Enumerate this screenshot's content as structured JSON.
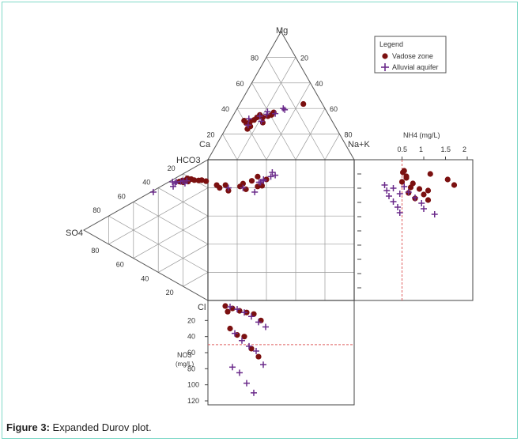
{
  "figure": {
    "caption_label": "Figure 3:",
    "caption_text": "Expanded Durov plot."
  },
  "colors": {
    "vadose": "#7b1010",
    "alluvial": "#6a2a8a",
    "frame": "#7fd8c8",
    "grid": "#999999",
    "reference_line": "#e06060"
  },
  "chart_data": {
    "type": "scatter",
    "plot_kind": "expanded Durov plot",
    "legend": {
      "title": "Legend",
      "placement": "top-right",
      "entries": [
        {
          "name": "Vadose zone",
          "marker": "filled-circle",
          "color": "#7b1010"
        },
        {
          "name": "Alluvial aquifer",
          "marker": "plus",
          "color": "#6a2a8a"
        }
      ]
    },
    "cation_triangle": {
      "apex_labels": {
        "top": "Mg",
        "left": "Ca",
        "right": "Na+K"
      },
      "left_edge_ticks": [
        "20",
        "40",
        "60",
        "80"
      ],
      "right_edge_ticks": [
        "20",
        "40",
        "60",
        "80"
      ]
    },
    "anion_triangle": {
      "apex_labels": {
        "top": "HCO3",
        "left": "SO4",
        "bottom": "Cl"
      },
      "top_edge_ticks": [
        "20",
        "40",
        "60",
        "80"
      ],
      "bottom_edge_ticks": [
        "20",
        "40",
        "60",
        "80"
      ]
    },
    "nh4_panel": {
      "label": "NH4 (mg/L)",
      "ticks": [
        "0.5",
        "1",
        "1.5",
        "2"
      ],
      "xlim": [
        0,
        2
      ],
      "reference_line": 0.5
    },
    "no3_panel": {
      "label_line1": "NO3",
      "label_line2": "(mg/L)",
      "ticks": [
        "20",
        "40",
        "60",
        "80",
        "100",
        "120"
      ],
      "ylim": [
        0,
        120
      ],
      "reference_line": 50
    },
    "series": [
      {
        "name": "Vadose zone",
        "cation_points": [
          [
            30.5,
            9.5
          ],
          [
            28.5,
            12
          ],
          [
            29.5,
            14
          ],
          [
            31,
            16
          ],
          [
            33,
            17
          ],
          [
            35,
            18
          ],
          [
            33,
            21
          ],
          [
            34,
            24
          ],
          [
            35,
            26
          ],
          [
            37,
            26.5
          ],
          [
            29,
            23
          ],
          [
            26,
            16
          ],
          [
            24,
            15
          ],
          [
            43.5,
            43.5
          ]
        ],
        "anion_points": [
          [
            79.5,
            7
          ],
          [
            80,
            9
          ],
          [
            81.5,
            11
          ],
          [
            78.5,
            5
          ],
          [
            83,
            12
          ],
          [
            84,
            14.5
          ],
          [
            73,
            4
          ],
          [
            74,
            6
          ],
          [
            76.5,
            7.5
          ],
          [
            75,
            4.5
          ],
          [
            77,
            5.5
          ]
        ],
        "square_points": [
          [
            82,
            6
          ],
          [
            80,
            8
          ],
          [
            82,
            12
          ],
          [
            78,
            14
          ],
          [
            81,
            22
          ],
          [
            79,
            26
          ],
          [
            83,
            24
          ],
          [
            85,
            30
          ],
          [
            88,
            34
          ],
          [
            86,
            40
          ],
          [
            81,
            34
          ],
          [
            81.5,
            37
          ]
        ],
        "nh4_values": [
          0.55,
          0.6,
          0.5,
          0.7,
          0.65,
          0.8,
          0.52,
          0.6,
          0.75,
          0.9,
          1.0,
          1.1,
          1.15,
          1.55,
          1.7,
          1.1
        ],
        "no3_values": [
          2,
          5,
          8,
          10,
          12,
          20,
          30,
          38,
          40,
          55,
          65,
          9
        ]
      },
      {
        "name": "Alluvial aquifer",
        "cation_points": [
          [
            36,
            28
          ],
          [
            39,
            33
          ],
          [
            40,
            31.5
          ],
          [
            35.5,
            22.5
          ],
          [
            37.5,
            22
          ],
          [
            27,
            14
          ],
          [
            32,
            12
          ],
          [
            34,
            18.5
          ],
          [
            30,
            21.5
          ]
        ],
        "anion_points": [
          [
            70,
            3.5
          ],
          [
            74,
            7.5
          ],
          [
            73.5,
            4.5
          ],
          [
            67,
            5
          ],
          [
            70,
            1.5
          ],
          [
            71.5,
            3
          ],
          [
            75,
            5
          ],
          [
            76.5,
            6.5
          ],
          [
            55,
            1
          ]
        ],
        "square_points": [
          [
            80,
            14
          ],
          [
            80,
            24
          ],
          [
            77,
            32
          ],
          [
            84,
            35
          ],
          [
            85,
            38
          ],
          [
            86,
            38
          ],
          [
            88,
            43
          ],
          [
            84,
            36
          ],
          [
            89,
            46
          ],
          [
            91,
            44
          ]
        ],
        "nh4_values": [
          0.1,
          0.15,
          0.2,
          0.3,
          0.4,
          0.45,
          0.55,
          0.65,
          0.8,
          0.95,
          1.0,
          1.25,
          0.3,
          0.45
        ],
        "no3_values": [
          3,
          6,
          10,
          15,
          22,
          28,
          36,
          45,
          52,
          58,
          75,
          78,
          85,
          98,
          110
        ]
      }
    ]
  }
}
